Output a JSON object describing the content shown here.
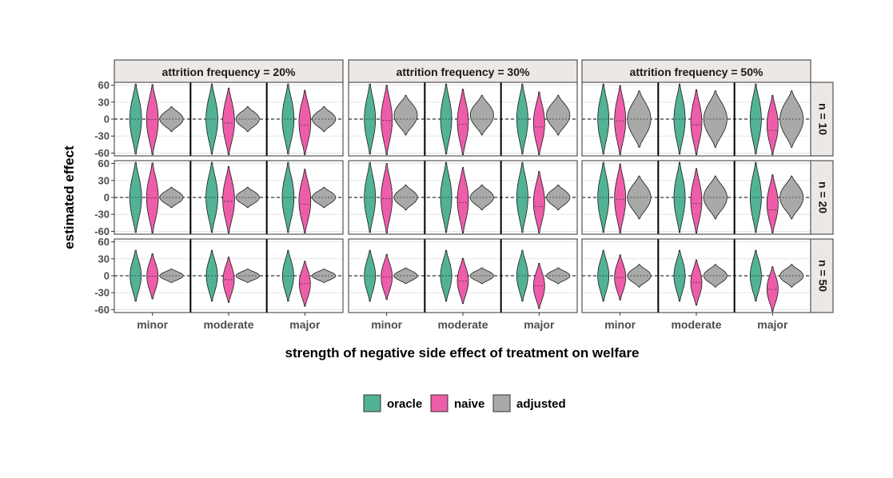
{
  "chart_data": {
    "type": "violin",
    "xlabel": "strength of negative side effect of treatment on welfare",
    "ylabel": "estimated effect",
    "ylim": [
      -65,
      65
    ],
    "yticks": [
      60,
      30,
      0,
      -30,
      -60
    ],
    "reference_line": 0,
    "column_facets": [
      "attrition frequency = 20%",
      "attrition frequency = 30%",
      "attrition frequency = 50%"
    ],
    "row_facets": [
      "n = 10",
      "n = 20",
      "n = 50"
    ],
    "categories": [
      "minor",
      "moderate",
      "major"
    ],
    "series": [
      {
        "name": "oracle",
        "color": "#52B295"
      },
      {
        "name": "naive",
        "color": "#EE5DA9"
      },
      {
        "name": "adjusted",
        "color": "#A9A9A9"
      }
    ],
    "legend_position": "bottom",
    "grid": true,
    "distributions": [
      {
        "n": "n = 10",
        "attrition": "20%",
        "oracle": {
          "median": 0,
          "min": -62,
          "max": 62,
          "width": 0.85
        },
        "naive": {
          "min": -62,
          "max": 62,
          "width": 0.85,
          "minor": -1,
          "moderate": -7,
          "major": -11
        },
        "adjusted": {
          "min": -22,
          "max": 22,
          "width": 1.0
        }
      },
      {
        "n": "n = 10",
        "attrition": "30%",
        "oracle": {
          "median": 0,
          "min": -62,
          "max": 62,
          "width": 0.8
        },
        "naive": {
          "min": -62,
          "max": 62,
          "width": 0.8,
          "minor": -2,
          "moderate": -9,
          "major": -14
        },
        "adjusted": {
          "min": -28,
          "max": 42,
          "width": 1.0
        }
      },
      {
        "n": "n = 10",
        "attrition": "50%",
        "oracle": {
          "median": 0,
          "min": -62,
          "max": 62,
          "width": 0.8
        },
        "naive": {
          "min": -62,
          "max": 62,
          "width": 0.8,
          "minor": -3,
          "moderate": -10,
          "major": -20
        },
        "adjusted": {
          "min": -50,
          "max": 50,
          "width": 1.0
        }
      },
      {
        "n": "n = 20",
        "attrition": "20%",
        "oracle": {
          "median": 0,
          "min": -62,
          "max": 62,
          "width": 0.85
        },
        "naive": {
          "min": -62,
          "max": 62,
          "width": 0.85,
          "minor": -1,
          "moderate": -7,
          "major": -12
        },
        "adjusted": {
          "min": -18,
          "max": 18,
          "width": 1.0
        }
      },
      {
        "n": "n = 20",
        "attrition": "30%",
        "oracle": {
          "median": 0,
          "min": -62,
          "max": 62,
          "width": 0.8
        },
        "naive": {
          "min": -62,
          "max": 62,
          "width": 0.8,
          "minor": -2,
          "moderate": -9,
          "major": -16
        },
        "adjusted": {
          "min": -22,
          "max": 22,
          "width": 1.0
        }
      },
      {
        "n": "n = 20",
        "attrition": "50%",
        "oracle": {
          "median": 0,
          "min": -62,
          "max": 62,
          "width": 0.8
        },
        "naive": {
          "min": -62,
          "max": 62,
          "width": 0.8,
          "minor": -3,
          "moderate": -11,
          "major": -22
        },
        "adjusted": {
          "min": -38,
          "max": 38,
          "width": 1.0
        }
      },
      {
        "n": "n = 50",
        "attrition": "20%",
        "oracle": {
          "median": 0,
          "min": -45,
          "max": 45,
          "width": 0.8
        },
        "naive": {
          "min": -40,
          "max": 40,
          "width": 0.8,
          "minor": -1,
          "moderate": -7,
          "major": -14
        },
        "adjusted": {
          "min": -12,
          "max": 12,
          "width": 1.0
        }
      },
      {
        "n": "n = 50",
        "attrition": "30%",
        "oracle": {
          "median": 0,
          "min": -45,
          "max": 45,
          "width": 0.8
        },
        "naive": {
          "min": -40,
          "max": 40,
          "width": 0.8,
          "minor": -2,
          "moderate": -9,
          "major": -18
        },
        "adjusted": {
          "min": -14,
          "max": 14,
          "width": 1.0
        }
      },
      {
        "n": "n = 50",
        "attrition": "50%",
        "oracle": {
          "median": 0,
          "min": -45,
          "max": 45,
          "width": 0.8
        },
        "naive": {
          "min": -40,
          "max": 40,
          "width": 0.8,
          "minor": -3,
          "moderate": -12,
          "major": -24
        },
        "adjusted": {
          "min": -20,
          "max": 20,
          "width": 1.0
        }
      }
    ]
  }
}
